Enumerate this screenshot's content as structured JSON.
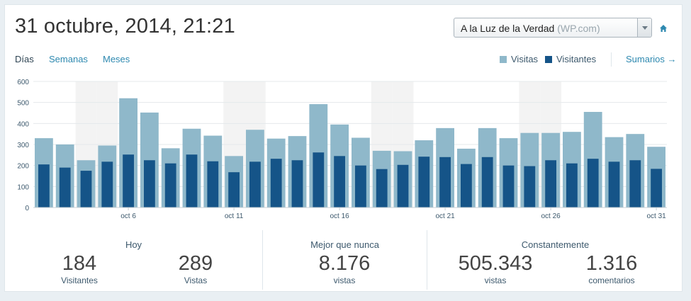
{
  "header": {
    "date_title": "31 octubre, 2014, 21:21",
    "site_name": "A la Luz de la Verdad",
    "site_suffix": "(WP.com)"
  },
  "tabs": {
    "days": "Días",
    "weeks": "Semanas",
    "months": "Meses"
  },
  "legend": {
    "views": "Visitas",
    "visitors": "Visitantes",
    "summaries": "Sumarios →",
    "views_color": "#8fb8ca",
    "visitors_color": "#155488"
  },
  "chart_data": {
    "type": "bar",
    "ylim": [
      0,
      600
    ],
    "yticks": [
      0,
      100,
      200,
      300,
      400,
      500,
      600
    ],
    "x_ticks": [
      {
        "index": 4,
        "label": "oct 6"
      },
      {
        "index": 9,
        "label": "oct 11"
      },
      {
        "index": 14,
        "label": "oct 16"
      },
      {
        "index": 19,
        "label": "oct 21"
      },
      {
        "index": 24,
        "label": "oct 26"
      },
      {
        "index": 29,
        "label": "oct 31"
      }
    ],
    "weekend_indices": [
      2,
      3,
      9,
      10,
      16,
      17,
      23,
      24
    ],
    "series": [
      {
        "name": "Visitas",
        "values": [
          330,
          300,
          225,
          295,
          520,
          452,
          282,
          375,
          342,
          245,
          370,
          328,
          340,
          492,
          395,
          332,
          270,
          268,
          320,
          378,
          280,
          378,
          330,
          355,
          355,
          360,
          455,
          335,
          350,
          289
        ]
      },
      {
        "name": "Visitantes",
        "values": [
          205,
          190,
          175,
          218,
          252,
          225,
          210,
          252,
          220,
          168,
          218,
          232,
          225,
          262,
          245,
          200,
          183,
          203,
          242,
          240,
          207,
          240,
          200,
          197,
          225,
          210,
          232,
          218,
          225,
          184
        ]
      }
    ]
  },
  "stats": {
    "today": {
      "title": "Hoy",
      "visitors_value": "184",
      "visitors_label": "Visitantes",
      "views_value": "289",
      "views_label": "Vistas"
    },
    "best": {
      "title": "Mejor que nunca",
      "value": "8.176",
      "label": "vistas"
    },
    "alltime": {
      "title": "Constantemente",
      "views_value": "505.343",
      "views_label": "vistas",
      "comments_value": "1.316",
      "comments_label": "comentarios"
    }
  }
}
